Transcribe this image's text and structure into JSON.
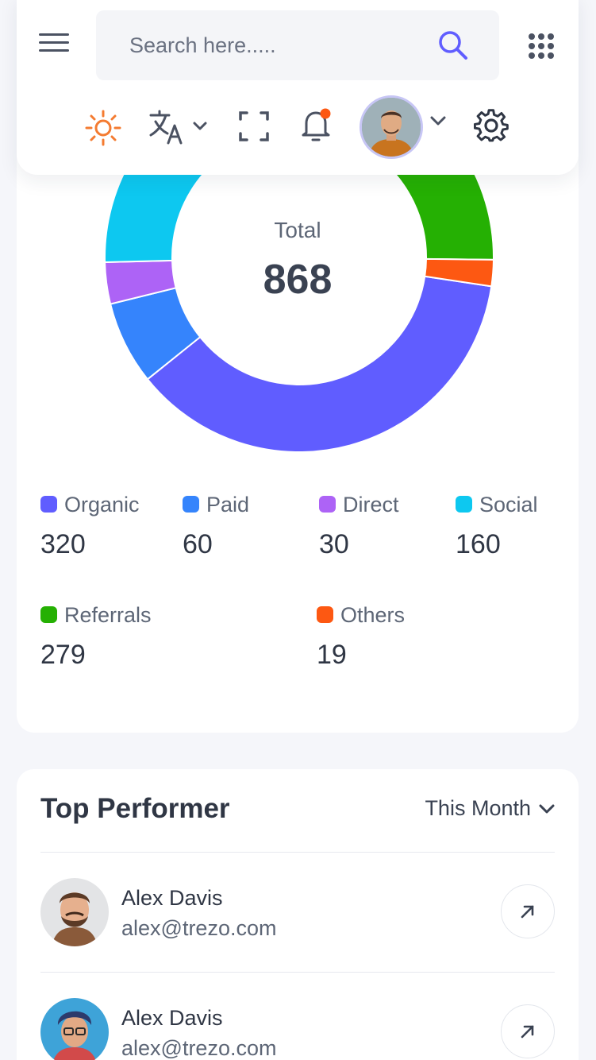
{
  "header": {
    "search_placeholder": "Search here.....",
    "icons": [
      "menu-icon",
      "search-icon",
      "apps-grid-icon",
      "sun-icon",
      "translate-icon",
      "fullscreen-icon",
      "notification-bell-icon",
      "profile-avatar",
      "settings-gear-icon"
    ]
  },
  "traffic": {
    "total_label": "Total",
    "total_value": "868",
    "legend": [
      {
        "name": "Organic",
        "value": "320",
        "color": "#605dff"
      },
      {
        "name": "Paid",
        "value": "60",
        "color": "#3584fc"
      },
      {
        "name": "Direct",
        "value": "30",
        "color": "#ad63f6"
      },
      {
        "name": "Social",
        "value": "160",
        "color": "#0dc8f0"
      },
      {
        "name": "Referrals",
        "value": "279",
        "color": "#25b003"
      },
      {
        "name": "Others",
        "value": "19",
        "color": "#fd5812"
      }
    ]
  },
  "chart_data": {
    "type": "pie",
    "categories": [
      "Organic",
      "Paid",
      "Direct",
      "Social",
      "Referrals",
      "Others"
    ],
    "values": [
      320,
      60,
      30,
      160,
      279,
      19
    ],
    "center_label": "Total",
    "center_value": 868
  },
  "top_performer": {
    "title": "Top Performer",
    "period": "This Month",
    "rows": [
      {
        "name": "Alex Davis",
        "email": "alex@trezo.com"
      },
      {
        "name": "Alex Davis",
        "email": "alex@trezo.com"
      }
    ]
  },
  "colors": {
    "accent": "#605dff",
    "sun": "#f47b31",
    "notification": "#fd5812"
  }
}
